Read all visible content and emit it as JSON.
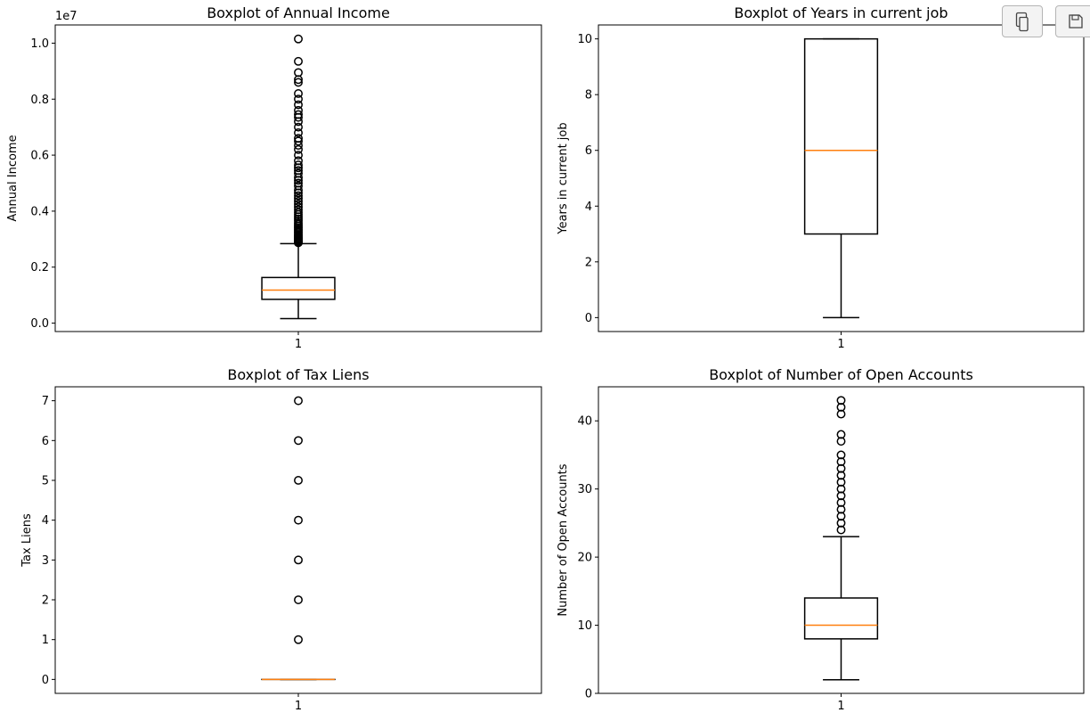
{
  "toolbar": {
    "copy_icon": "copy-icon",
    "save_icon": "save-icon"
  },
  "colors": {
    "median": "#ff7f0e",
    "box": "#000000"
  },
  "chart_data": [
    {
      "type": "boxplot",
      "title": "Boxplot of Annual Income",
      "ylabel": "Annual Income",
      "xlabel": "",
      "offset_label": "1e7",
      "categories": [
        "1"
      ],
      "ylim": [
        -0.03,
        1.065
      ],
      "yticks": [
        0.0,
        0.2,
        0.4,
        0.6,
        0.8,
        1.0
      ],
      "ytick_labels": [
        "0.0",
        "0.2",
        "0.4",
        "0.6",
        "0.8",
        "1.0"
      ],
      "box": {
        "whislo": 0.016,
        "q1": 0.085,
        "med": 0.118,
        "q3": 0.163,
        "whishi": 0.284
      },
      "fliers": [
        0.287,
        0.29,
        0.293,
        0.296,
        0.3,
        0.303,
        0.307,
        0.311,
        0.315,
        0.32,
        0.325,
        0.33,
        0.335,
        0.34,
        0.346,
        0.352,
        0.358,
        0.365,
        0.372,
        0.38,
        0.388,
        0.396,
        0.405,
        0.415,
        0.425,
        0.435,
        0.445,
        0.455,
        0.465,
        0.475,
        0.49,
        0.5,
        0.51,
        0.52,
        0.535,
        0.545,
        0.555,
        0.565,
        0.58,
        0.6,
        0.62,
        0.635,
        0.65,
        0.66,
        0.68,
        0.7,
        0.72,
        0.735,
        0.745,
        0.76,
        0.78,
        0.8,
        0.82,
        0.86,
        0.87,
        0.895,
        0.935,
        1.015
      ]
    },
    {
      "type": "boxplot",
      "title": "Boxplot of Years in current job",
      "ylabel": "Years in current job",
      "xlabel": "",
      "offset_label": "",
      "categories": [
        "1"
      ],
      "ylim": [
        -0.5,
        10.5
      ],
      "yticks": [
        0,
        2,
        4,
        6,
        8,
        10
      ],
      "ytick_labels": [
        "0",
        "2",
        "4",
        "6",
        "8",
        "10"
      ],
      "box": {
        "whislo": 0,
        "q1": 3,
        "med": 6,
        "q3": 10,
        "whishi": 10
      },
      "fliers": []
    },
    {
      "type": "boxplot",
      "title": "Boxplot of Tax Liens",
      "ylabel": "Tax Liens",
      "xlabel": "",
      "offset_label": "",
      "categories": [
        "1"
      ],
      "ylim": [
        -0.35,
        7.35
      ],
      "yticks": [
        0,
        1,
        2,
        3,
        4,
        5,
        6,
        7
      ],
      "ytick_labels": [
        "0",
        "1",
        "2",
        "3",
        "4",
        "5",
        "6",
        "7"
      ],
      "box": {
        "whislo": 0,
        "q1": 0,
        "med": 0,
        "q3": 0,
        "whishi": 0
      },
      "fliers": [
        1,
        2,
        3,
        4,
        5,
        6,
        7
      ]
    },
    {
      "type": "boxplot",
      "title": "Boxplot of Number of Open Accounts",
      "ylabel": "Number of Open Accounts",
      "xlabel": "",
      "offset_label": "",
      "categories": [
        "1"
      ],
      "ylim": [
        0,
        45
      ],
      "yticks": [
        0,
        10,
        20,
        30,
        40
      ],
      "ytick_labels": [
        "0",
        "10",
        "20",
        "30",
        "40"
      ],
      "box": {
        "whislo": 2,
        "q1": 8,
        "med": 10,
        "q3": 14,
        "whishi": 23
      },
      "fliers": [
        24,
        25,
        26,
        27,
        28,
        29,
        30,
        31,
        32,
        33,
        34,
        35,
        37,
        38,
        41,
        42,
        43
      ]
    }
  ]
}
